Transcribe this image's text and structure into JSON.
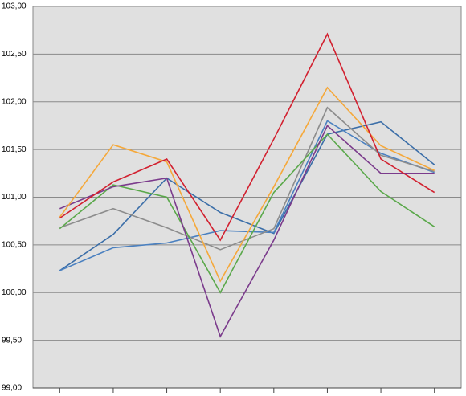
{
  "chart_data": {
    "type": "line",
    "categories": [
      null,
      null,
      null,
      null,
      null,
      null,
      null,
      null
    ],
    "series": [
      {
        "color": "#3b6ea8",
        "values": [
          100.23,
          100.61,
          101.2,
          100.84,
          100.62,
          101.66,
          101.79,
          101.34
        ]
      },
      {
        "color": "#4a80c0",
        "values": [
          100.23,
          100.47,
          100.52,
          100.65,
          100.63,
          101.8,
          101.46,
          101.26
        ]
      },
      {
        "color": "#8c8c8c",
        "values": [
          100.68,
          100.88,
          100.68,
          100.45,
          100.67,
          101.94,
          101.44,
          101.27
        ]
      },
      {
        "color": "#5aa84a",
        "values": [
          100.67,
          101.13,
          101.0,
          100.0,
          101.05,
          101.66,
          101.06,
          100.69
        ]
      },
      {
        "color": "#7b3b8c",
        "values": [
          100.88,
          101.11,
          101.2,
          99.54,
          100.55,
          101.75,
          101.25,
          101.25
        ]
      },
      {
        "color": "#f5a83a",
        "values": [
          100.79,
          101.55,
          101.37,
          100.12,
          101.11,
          102.15,
          101.54,
          101.28
        ]
      },
      {
        "color": "#d2202f",
        "values": [
          100.78,
          101.16,
          101.4,
          100.55,
          101.61,
          102.71,
          101.4,
          101.05
        ]
      }
    ],
    "ylim": [
      99,
      103
    ],
    "yticks": [
      {
        "value": 99,
        "label": "99,00"
      },
      {
        "value": 99.5,
        "label": "99,50"
      },
      {
        "value": 100,
        "label": "100,00"
      },
      {
        "value": 100.5,
        "label": "100,50"
      },
      {
        "value": 101,
        "label": "101,00"
      },
      {
        "value": 101.5,
        "label": "101,50"
      },
      {
        "value": 102,
        "label": "102,00"
      },
      {
        "value": 102.5,
        "label": "102,50"
      },
      {
        "value": 103,
        "label": "103,00"
      }
    ],
    "grid": true
  }
}
